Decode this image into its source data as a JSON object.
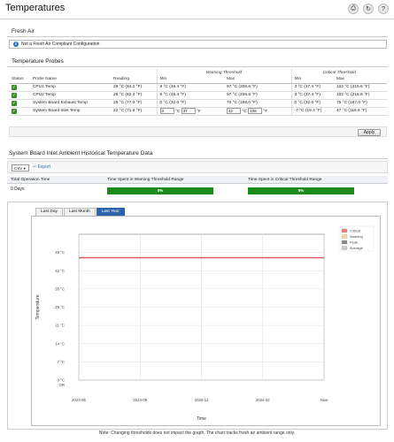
{
  "header": {
    "title": "Temperatures",
    "icons": [
      "print-icon",
      "refresh-icon",
      "help-icon"
    ]
  },
  "fresh_air": {
    "section_title": "Fresh Air",
    "info_text": "Not a Fresh Air Compliant Configuration"
  },
  "probes": {
    "section_title": "Temperature Probes",
    "group_headers": {
      "warning": "Warning Threshold",
      "critical": "Critical Threshold"
    },
    "columns": [
      "Status",
      "Probe Name",
      "Reading",
      "Min",
      "Max",
      "Min",
      "Max"
    ],
    "rows": [
      {
        "name": "CPU1 Temp",
        "reading": "29 °C (84.2 °F)",
        "warn_min": "8 °C (46.4 °F)",
        "warn_max": "97 °C (206.6 °F)",
        "crit_min": "3 °C (37.4 °F)",
        "crit_max": "102 °C (215.6 °F)"
      },
      {
        "name": "CPU2 Temp",
        "reading": "28 °C (82.4 °F)",
        "warn_min": "8 °C (46.4 °F)",
        "warn_max": "97 °C (206.6 °F)",
        "crit_min": "3 °C (37.4 °F)",
        "crit_max": "102 °C (215.6 °F)"
      },
      {
        "name": "System Board Exhaust Temp",
        "reading": "25 °C (77.0 °F)",
        "warn_min": "0 °C (32.0 °F)",
        "warn_max": "70 °C (158.0 °F)",
        "crit_min": "0 °C (32.0 °F)",
        "crit_max": "75 °C (167.0 °F)"
      },
      {
        "name": "System Board Inlet Temp",
        "reading": "22 °C (71.6 °F)",
        "warn_min_c": "3",
        "warn_min_f": "37",
        "warn_max_c": "42",
        "warn_max_f": "108",
        "unit_c": "°C",
        "unit_f": "°F",
        "crit_min": "-7 °C (19.4 °F)",
        "crit_max": "47 °C (116.6 °F)"
      }
    ],
    "apply_label": "Apply"
  },
  "history": {
    "section_title": "System Board Inlet Ambient Historical Temperature Data",
    "format_select": "CSV",
    "export_label": "Export",
    "stat_headers": [
      "Total Operation Time",
      "Time Spent in Warning Threshold Range",
      "Time Spent in Critical Threshold Range"
    ],
    "total_operation_time": "0 Days",
    "warning_pct": "0%",
    "critical_pct": "0%",
    "tabs": [
      "Last Day",
      "Last Month",
      "Last Year"
    ],
    "active_tab": "Last Year"
  },
  "chart_data": {
    "type": "line",
    "title": "",
    "xlabel": "Time",
    "ylabel": "Temperature",
    "x_ticks": [
      "2023-06",
      "2023-08",
      "2020-11",
      "2024-02",
      "Now"
    ],
    "y_ticks": [
      "0 °C",
      "7 °C",
      "14 °C",
      "21 °C",
      "28 °C",
      "35 °C",
      "42 °C",
      "49 °C"
    ],
    "y_ticks_f": [
      "OR",
      "",
      "",
      "",
      "",
      "",
      "",
      ""
    ],
    "ylim": [
      0,
      56
    ],
    "series": [
      {
        "name": "Critical",
        "color": "#e05050",
        "values": [
          47,
          47,
          47,
          47,
          47
        ]
      }
    ],
    "legend": [
      "Critical",
      "Warning",
      "Peak",
      "Average"
    ],
    "legend_colors": [
      "#f08080",
      "#f5d6a0",
      "#888888",
      "#cccccc"
    ],
    "legend_position": "top-right",
    "grid": true
  },
  "footnote": "Note: Changing thresholds does not impact the graph. The chart tracks fresh air ambient range only."
}
